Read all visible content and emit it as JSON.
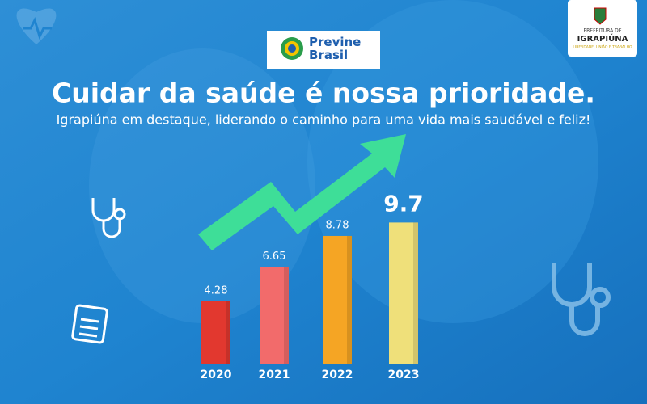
{
  "logo": {
    "text": "Previne Brasil"
  },
  "municipality": {
    "prefix": "PREFEITURA DE",
    "name": "IGRAPIÚNA",
    "motto": "LIBERDADE, UNIÃO E TRABALHO"
  },
  "chart_data": {
    "type": "bar",
    "title": "Cuidar da saúde é nossa prioridade.",
    "subtitle": "Igrapiúna em destaque, liderando o caminho para uma vida mais saudável e feliz!",
    "categories": [
      "2020",
      "2021",
      "2022",
      "2023"
    ],
    "values": [
      4.28,
      6.65,
      8.78,
      9.7
    ],
    "colors": [
      "#e2382f",
      "#f26b6b",
      "#f5a524",
      "#efe07a"
    ]
  }
}
